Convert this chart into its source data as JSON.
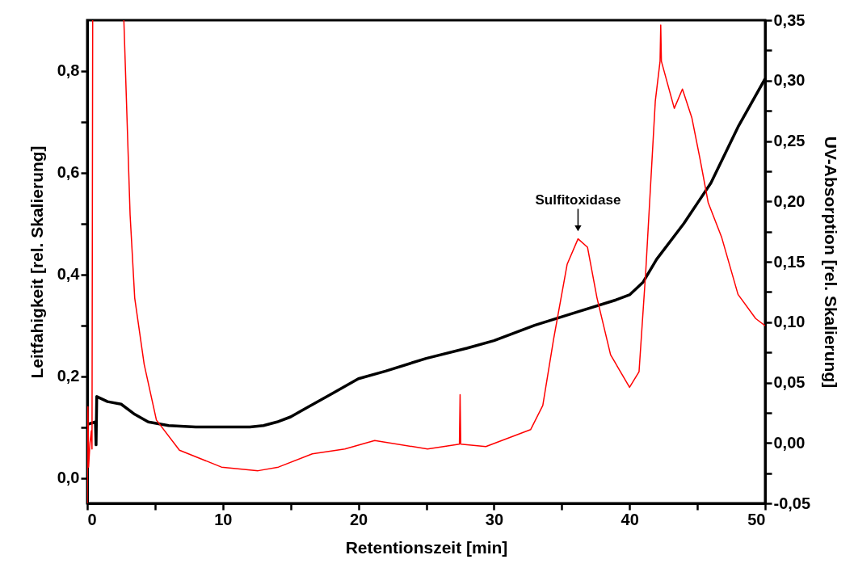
{
  "chart_data": {
    "type": "line",
    "xlabel": "Retentionszeit [min]",
    "ylabel": "Leitfahigkeit [rel. Skalierung]",
    "y2label": "UV-Absorption [rel. Skalierung]",
    "annotations": [
      {
        "text": "Sulfitoxidase",
        "x": 36.2,
        "y": 0.475
      }
    ],
    "series": [
      {
        "color": "#000000",
        "x": [
          0,
          0.6,
          0.65,
          0.7,
          1.5,
          2.5,
          3.5,
          4.5,
          6,
          8,
          10,
          12,
          13,
          14,
          15,
          16,
          18,
          20,
          22,
          25,
          28,
          30,
          33,
          36,
          39,
          40,
          41,
          42,
          44,
          45,
          46,
          48,
          50
        ],
        "values": [
          0.105,
          0.11,
          0.065,
          0.16,
          0.15,
          0.145,
          0.125,
          0.11,
          0.103,
          0.1,
          0.1,
          0.1,
          0.103,
          0.11,
          0.12,
          0.135,
          0.165,
          0.195,
          0.21,
          0.235,
          0.255,
          0.27,
          0.3,
          0.325,
          0.35,
          0.36,
          0.385,
          0.43,
          0.5,
          0.54,
          0.58,
          0.69,
          0.785
        ]
      },
      {
        "color": "#ff0000",
        "axis": "y2",
        "x": [
          0,
          0.05,
          0.1,
          0.2,
          0.3,
          0.35,
          0.4,
          0.45,
          2.7,
          3.16,
          3.5,
          4.2,
          5.1,
          6.8,
          9.9,
          12.6,
          14.1,
          16.6,
          19,
          21.2,
          25.1,
          27.45,
          27.5,
          27.55,
          29.4,
          32.7,
          33.6,
          34.4,
          35.4,
          36.2,
          36.9,
          37.6,
          38.6,
          40,
          40.7,
          41.2,
          41.9,
          42.25,
          42.3,
          42.35,
          43.3,
          43.9,
          44.6,
          45.2,
          45.8,
          46.8,
          48,
          49.3,
          50
        ],
        "values": [
          -0.05,
          0.03,
          -0.02,
          0,
          0.01,
          -0.005,
          0.35,
          null,
          0.35,
          0.189,
          0.12,
          0.065,
          0.019,
          -0.006,
          -0.02,
          -0.023,
          -0.02,
          -0.009,
          -0.005,
          0.002,
          -0.005,
          -0.001,
          0.04,
          -0.001,
          -0.003,
          0.011,
          0.031,
          0.086,
          0.148,
          0.169,
          0.162,
          0.12,
          0.073,
          0.046,
          0.059,
          0.143,
          0.283,
          0.316,
          0.346,
          0.316,
          0.277,
          0.293,
          0.269,
          0.235,
          0.199,
          0.17,
          0.123,
          0.103,
          0.097
        ]
      }
    ],
    "xlim": [
      0,
      50
    ],
    "xticks": [
      0,
      {
        "value": 5,
        "label": null
      },
      10,
      {
        "value": 15,
        "label": null
      },
      20,
      {
        "value": 25,
        "label": null
      },
      30,
      {
        "value": 35,
        "label": null
      },
      40,
      {
        "value": 45,
        "label": null
      },
      50
    ],
    "ylim": [
      -0.05,
      0.9
    ],
    "yticks": [
      {
        "value": 0,
        "label": "0,0"
      },
      {
        "value": 0.1,
        "label": null
      },
      {
        "value": 0.2,
        "label": "0,2"
      },
      {
        "value": 0.3,
        "label": null
      },
      {
        "value": 0.4,
        "label": "0,4"
      },
      {
        "value": 0.5,
        "label": null
      },
      {
        "value": 0.6,
        "label": "0,6"
      },
      {
        "value": 0.7,
        "label": null
      },
      {
        "value": 0.8,
        "label": "0,8"
      }
    ],
    "y2lim": [
      -0.05,
      0.35
    ],
    "y2ticks": [
      {
        "value": -0.05,
        "label": "-0,05"
      },
      {
        "value": -0.025,
        "label": null
      },
      {
        "value": 0,
        "label": "0,00"
      },
      {
        "value": 0.025,
        "label": null
      },
      {
        "value": 0.05,
        "label": "0,05"
      },
      {
        "value": 0.075,
        "label": null
      },
      {
        "value": 0.1,
        "label": "0,10"
      },
      {
        "value": 0.125,
        "label": null
      },
      {
        "value": 0.15,
        "label": "0,15"
      },
      {
        "value": 0.175,
        "label": null
      },
      {
        "value": 0.2,
        "label": "0,20"
      },
      {
        "value": 0.225,
        "label": null
      },
      {
        "value": 0.25,
        "label": "0,25"
      },
      {
        "value": 0.275,
        "label": null
      },
      {
        "value": 0.3,
        "label": "0,30"
      },
      {
        "value": 0.325,
        "label": null
      },
      {
        "value": 0.35,
        "label": "0,35"
      }
    ],
    "grid": false,
    "legend": false
  }
}
